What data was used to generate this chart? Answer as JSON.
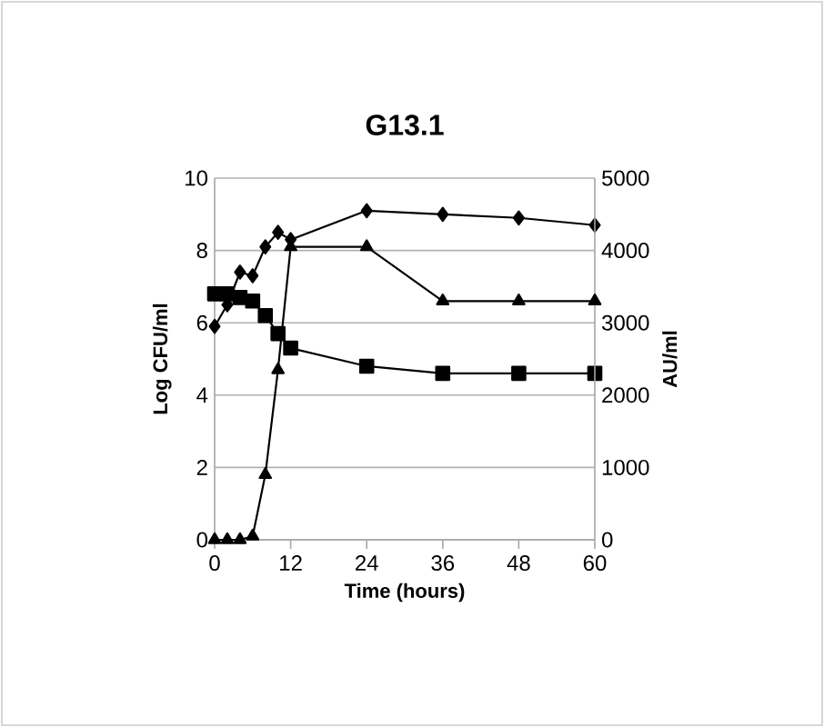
{
  "chart_data": {
    "type": "line",
    "title": "G13.1",
    "xlabel": "Time (hours)",
    "ylabel": "Log CFU/ml",
    "y2label": "AU/ml",
    "x": [
      0,
      2,
      4,
      6,
      8,
      10,
      12,
      24,
      36,
      48,
      60
    ],
    "series": [
      {
        "color": "#000000",
        "marker": "diamond",
        "values": [
          5.9,
          6.5,
          7.4,
          7.3,
          8.1,
          8.5,
          8.3,
          9.1,
          9.0,
          8.9,
          8.7
        ]
      },
      {
        "color": "#000000",
        "marker": "square",
        "values": [
          6.8,
          6.8,
          6.7,
          6.6,
          6.2,
          5.7,
          5.3,
          4.8,
          4.6,
          4.6,
          4.6
        ]
      },
      {
        "color": "#000000",
        "marker": "triangle",
        "axis": "y2",
        "values": [
          0,
          0,
          0,
          50,
          900,
          2350,
          4050,
          4050,
          3300,
          3300,
          3300
        ]
      }
    ],
    "xlim": [
      0,
      60
    ],
    "xticks": [
      0,
      12,
      24,
      36,
      48,
      60
    ],
    "ylim": [
      0,
      10
    ],
    "yticks": [
      0,
      2,
      4,
      6,
      8,
      10
    ],
    "y2lim": [
      0,
      5000
    ],
    "y2ticks": [
      0,
      1000,
      2000,
      3000,
      4000,
      5000
    ],
    "grid": "y",
    "line_style": "solid"
  }
}
